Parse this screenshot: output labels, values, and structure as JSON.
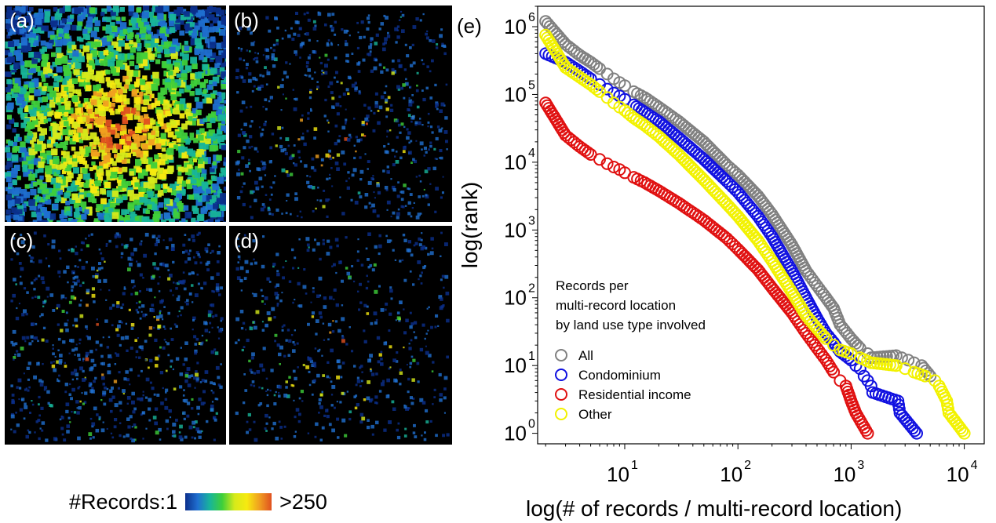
{
  "panels": [
    {
      "id": "a",
      "label": "(a)"
    },
    {
      "id": "b",
      "label": "(b)"
    },
    {
      "id": "c",
      "label": "(c)"
    },
    {
      "id": "d",
      "label": "(d)"
    }
  ],
  "colorbar": {
    "prefix": "#Records:",
    "min_label": "1",
    "max_label": ">250",
    "colors": [
      "#0b2f8c",
      "#1f6fd0",
      "#18b59a",
      "#3fcf3a",
      "#d6ea1a",
      "#f7ea10",
      "#f0a020",
      "#e05020"
    ]
  },
  "chart_data": {
    "type": "scatter",
    "panel_label": "(e)",
    "xlabel": "log(# of records / multi-record location)",
    "ylabel": "log(rank)",
    "x_scale": "log",
    "y_scale": "log",
    "xlim": [
      1.7,
      15000
    ],
    "ylim": [
      0.7,
      2000000
    ],
    "x_tick_bases": [
      "10",
      "10",
      "10",
      "10"
    ],
    "x_tick_exponents": [
      "1",
      "2",
      "3",
      "4"
    ],
    "x_tick_values": [
      10,
      100,
      1000,
      10000
    ],
    "y_tick_bases": [
      "10",
      "10",
      "10",
      "10",
      "10",
      "10",
      "10"
    ],
    "y_tick_exponents": [
      "0",
      "1",
      "2",
      "3",
      "4",
      "5",
      "6"
    ],
    "y_tick_values": [
      1,
      10,
      100,
      1000,
      10000,
      100000,
      1000000
    ],
    "grid": false,
    "legend_title": [
      "Records per",
      "multi-record location",
      "by land use type involved"
    ],
    "legend_position": "lower-left",
    "series": [
      {
        "name": "All",
        "color": "#808080",
        "points": [
          [
            2,
            1200000
          ],
          [
            3,
            550000
          ],
          [
            4,
            380000
          ],
          [
            5,
            300000
          ],
          [
            6,
            240000
          ],
          [
            7,
            200000
          ],
          [
            8,
            170000
          ],
          [
            9,
            150000
          ],
          [
            10,
            135000
          ],
          [
            12,
            110000
          ],
          [
            15,
            90000
          ],
          [
            20,
            65000
          ],
          [
            30,
            40000
          ],
          [
            50,
            20000
          ],
          [
            80,
            9000
          ],
          [
            100,
            6500
          ],
          [
            150,
            3200
          ],
          [
            200,
            1700
          ],
          [
            300,
            600
          ],
          [
            400,
            250
          ],
          [
            500,
            150
          ],
          [
            600,
            100
          ],
          [
            700,
            70
          ],
          [
            800,
            40
          ],
          [
            1000,
            25
          ],
          [
            1200,
            18
          ],
          [
            1400,
            15
          ],
          [
            1500,
            13
          ],
          [
            2500,
            14
          ],
          [
            2800,
            13
          ],
          [
            3200,
            12
          ],
          [
            3600,
            11
          ],
          [
            4200,
            10
          ],
          [
            5000,
            7
          ]
        ]
      },
      {
        "name": "Condominium",
        "color": "#1010e0",
        "points": [
          [
            2,
            400000
          ],
          [
            3,
            300000
          ],
          [
            4,
            220000
          ],
          [
            5,
            170000
          ],
          [
            6,
            140000
          ],
          [
            7,
            120000
          ],
          [
            8,
            105000
          ],
          [
            9,
            95000
          ],
          [
            10,
            85000
          ],
          [
            12,
            70000
          ],
          [
            15,
            55000
          ],
          [
            20,
            40000
          ],
          [
            30,
            23000
          ],
          [
            50,
            11000
          ],
          [
            80,
            5200
          ],
          [
            100,
            3600
          ],
          [
            150,
            1600
          ],
          [
            200,
            800
          ],
          [
            300,
            250
          ],
          [
            400,
            100
          ],
          [
            500,
            50
          ],
          [
            600,
            30
          ],
          [
            700,
            22
          ],
          [
            800,
            16
          ],
          [
            1000,
            12
          ],
          [
            1100,
            10
          ],
          [
            1200,
            9
          ],
          [
            1300,
            7
          ],
          [
            1400,
            6
          ],
          [
            1500,
            5
          ],
          [
            1550,
            4
          ],
          [
            2600,
            3
          ],
          [
            2700,
            2
          ],
          [
            3800,
            1
          ]
        ]
      },
      {
        "name": "Residential income",
        "color": "#e01010",
        "points": [
          [
            2,
            75000
          ],
          [
            3,
            25000
          ],
          [
            4,
            17000
          ],
          [
            5,
            13000
          ],
          [
            6,
            11000
          ],
          [
            7,
            9500
          ],
          [
            8,
            8500
          ],
          [
            9,
            7800
          ],
          [
            10,
            7000
          ],
          [
            12,
            6000
          ],
          [
            15,
            5000
          ],
          [
            20,
            3800
          ],
          [
            30,
            2500
          ],
          [
            50,
            1400
          ],
          [
            80,
            750
          ],
          [
            100,
            520
          ],
          [
            150,
            260
          ],
          [
            200,
            140
          ],
          [
            300,
            60
          ],
          [
            400,
            30
          ],
          [
            500,
            18
          ],
          [
            600,
            12
          ],
          [
            700,
            8
          ],
          [
            800,
            6
          ],
          [
            900,
            5
          ],
          [
            1000,
            3
          ],
          [
            1100,
            2
          ],
          [
            1400,
            1
          ]
        ]
      },
      {
        "name": "Other",
        "color": "#f2f200",
        "points": [
          [
            2,
            750000
          ],
          [
            3,
            250000
          ],
          [
            4,
            180000
          ],
          [
            5,
            140000
          ],
          [
            6,
            110000
          ],
          [
            7,
            90000
          ],
          [
            8,
            75000
          ],
          [
            9,
            65000
          ],
          [
            10,
            58000
          ],
          [
            12,
            45000
          ],
          [
            15,
            35000
          ],
          [
            20,
            24000
          ],
          [
            30,
            13000
          ],
          [
            50,
            5500
          ],
          [
            80,
            2400
          ],
          [
            100,
            1600
          ],
          [
            150,
            700
          ],
          [
            200,
            350
          ],
          [
            300,
            120
          ],
          [
            400,
            55
          ],
          [
            500,
            35
          ],
          [
            600,
            25
          ],
          [
            700,
            20
          ],
          [
            800,
            17
          ],
          [
            1000,
            15
          ],
          [
            1200,
            13
          ],
          [
            1500,
            11
          ],
          [
            2500,
            10
          ],
          [
            3000,
            9
          ],
          [
            3600,
            8
          ],
          [
            4500,
            7
          ],
          [
            5500,
            6
          ],
          [
            6000,
            5
          ],
          [
            7000,
            3
          ],
          [
            7300,
            2
          ],
          [
            10000,
            1
          ]
        ]
      }
    ]
  }
}
